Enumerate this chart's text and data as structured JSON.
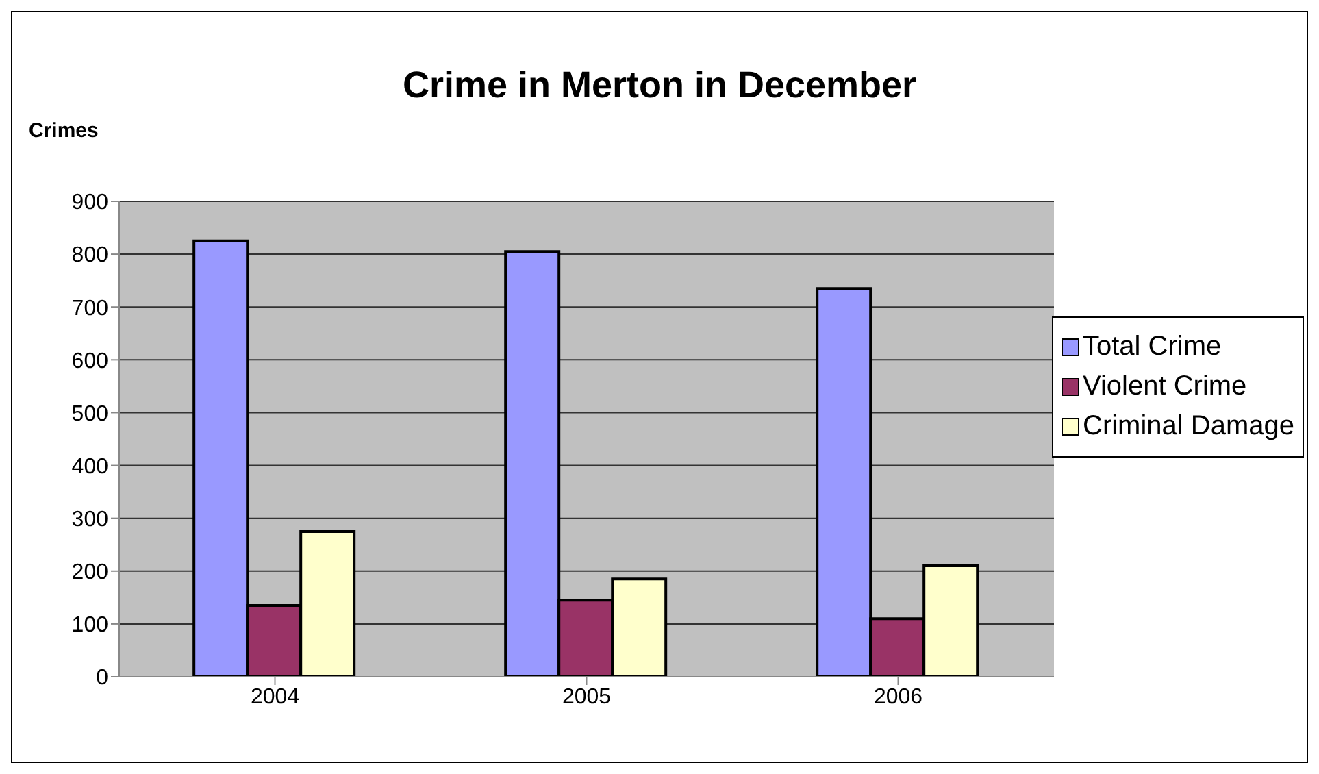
{
  "chart_data": {
    "type": "bar",
    "title": "Crime in Merton in December",
    "ylabel": "Crimes",
    "categories": [
      "2004",
      "2005",
      "2006"
    ],
    "series": [
      {
        "name": "Total Crime",
        "color": "#9999ff",
        "values": [
          825,
          805,
          735
        ]
      },
      {
        "name": "Violent Crime",
        "color": "#993366",
        "values": [
          135,
          145,
          110
        ]
      },
      {
        "name": "Criminal Damage",
        "color": "#ffffcc",
        "values": [
          275,
          185,
          210
        ]
      }
    ],
    "ylim": [
      0,
      900
    ],
    "yticks": [
      0,
      100,
      200,
      300,
      400,
      500,
      600,
      700,
      800,
      900
    ],
    "grid": "y",
    "legend": "right"
  }
}
